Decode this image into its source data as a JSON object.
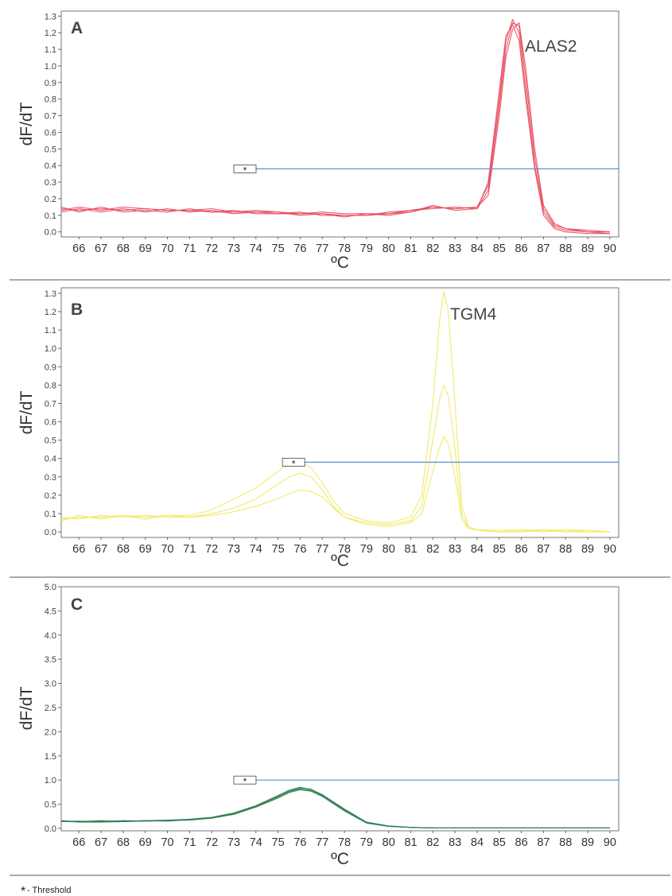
{
  "chart_data": [
    {
      "type": "line",
      "panel_label": "A",
      "annotation": "ALAS2",
      "ylabel": "dF/dT",
      "xlabel": "ºC",
      "xlim": [
        65.2,
        90.4
      ],
      "ylim": [
        -0.03,
        1.33
      ],
      "x_ticks": [
        "66",
        "67",
        "68",
        "69",
        "70",
        "71",
        "72",
        "73",
        "74",
        "75",
        "76",
        "77",
        "78",
        "79",
        "80",
        "81",
        "82",
        "83",
        "84",
        "85",
        "86",
        "87",
        "88",
        "89",
        "90"
      ],
      "y_ticks": [
        "0.0",
        "0.1",
        "0.2",
        "0.3",
        "0.4",
        "0.5",
        "0.6",
        "0.7",
        "0.8",
        "0.9",
        "1.0",
        "1.1",
        "1.2",
        "1.3"
      ],
      "threshold": {
        "value": 0.38,
        "x_start": 73.0,
        "marker": "*"
      },
      "line_color": "#e8475a",
      "x": [
        65.2,
        66,
        67,
        68,
        69,
        70,
        71,
        72,
        73,
        74,
        75,
        76,
        77,
        78,
        79,
        80,
        81,
        82,
        83,
        84,
        84.5,
        85,
        85.3,
        85.6,
        85.9,
        86.2,
        86.6,
        87,
        87.5,
        88,
        89,
        90
      ],
      "series": [
        {
          "values": [
            0.14,
            0.13,
            0.14,
            0.13,
            0.14,
            0.13,
            0.13,
            0.12,
            0.12,
            0.12,
            0.11,
            0.11,
            0.11,
            0.1,
            0.1,
            0.11,
            0.13,
            0.15,
            0.14,
            0.15,
            0.28,
            0.8,
            1.15,
            1.28,
            1.2,
            0.85,
            0.4,
            0.12,
            0.03,
            0.01,
            0.0,
            -0.01
          ]
        },
        {
          "values": [
            0.12,
            0.14,
            0.12,
            0.14,
            0.12,
            0.14,
            0.12,
            0.13,
            0.11,
            0.12,
            0.12,
            0.1,
            0.11,
            0.09,
            0.11,
            0.1,
            0.12,
            0.16,
            0.13,
            0.14,
            0.25,
            0.75,
            1.1,
            1.26,
            1.24,
            0.92,
            0.45,
            0.14,
            0.04,
            0.02,
            0.0,
            0.0
          ]
        },
        {
          "values": [
            0.15,
            0.12,
            0.15,
            0.12,
            0.13,
            0.12,
            0.14,
            0.12,
            0.13,
            0.11,
            0.11,
            0.12,
            0.1,
            0.1,
            0.1,
            0.12,
            0.13,
            0.14,
            0.15,
            0.14,
            0.3,
            0.85,
            1.18,
            1.25,
            1.15,
            0.8,
            0.38,
            0.1,
            0.02,
            0.0,
            -0.01,
            -0.01
          ]
        },
        {
          "values": [
            0.13,
            0.15,
            0.13,
            0.15,
            0.14,
            0.13,
            0.13,
            0.14,
            0.12,
            0.13,
            0.12,
            0.11,
            0.12,
            0.11,
            0.11,
            0.11,
            0.12,
            0.15,
            0.14,
            0.15,
            0.22,
            0.7,
            1.05,
            1.22,
            1.26,
            0.98,
            0.5,
            0.16,
            0.05,
            0.02,
            0.01,
            0.0
          ]
        }
      ]
    },
    {
      "type": "line",
      "panel_label": "B",
      "annotation": "TGM4",
      "ylabel": "dF/dT",
      "xlabel": "ºC",
      "xlim": [
        65.2,
        90.4
      ],
      "ylim": [
        -0.03,
        1.33
      ],
      "x_ticks": [
        "66",
        "67",
        "68",
        "69",
        "70",
        "71",
        "72",
        "73",
        "74",
        "75",
        "76",
        "77",
        "78",
        "79",
        "80",
        "81",
        "82",
        "83",
        "84",
        "85",
        "86",
        "87",
        "88",
        "89",
        "90"
      ],
      "y_ticks": [
        "0.0",
        "0.1",
        "0.2",
        "0.3",
        "0.4",
        "0.5",
        "0.6",
        "0.7",
        "0.8",
        "0.9",
        "1.0",
        "1.1",
        "1.2",
        "1.3"
      ],
      "threshold": {
        "value": 0.38,
        "x_start": 75.2,
        "marker": "*"
      },
      "line_color": "#f0e858",
      "x": [
        65.2,
        66,
        67,
        68,
        69,
        70,
        71,
        72,
        73,
        74,
        75,
        75.5,
        76,
        76.5,
        77,
        77.5,
        78,
        79,
        80,
        81,
        81.5,
        82,
        82.3,
        82.5,
        82.7,
        83,
        83.3,
        83.6,
        84,
        85,
        86,
        87,
        88,
        89,
        90
      ],
      "series": [
        {
          "values": [
            0.07,
            0.08,
            0.08,
            0.09,
            0.08,
            0.09,
            0.09,
            0.12,
            0.18,
            0.24,
            0.33,
            0.37,
            0.38,
            0.35,
            0.27,
            0.17,
            0.1,
            0.06,
            0.05,
            0.08,
            0.2,
            0.7,
            1.15,
            1.31,
            1.2,
            0.7,
            0.15,
            0.03,
            0.01,
            0.01,
            0.01,
            0.01,
            0.01,
            0.01,
            0.0
          ]
        },
        {
          "values": [
            0.08,
            0.07,
            0.09,
            0.08,
            0.09,
            0.08,
            0.08,
            0.1,
            0.13,
            0.18,
            0.26,
            0.3,
            0.32,
            0.3,
            0.23,
            0.14,
            0.08,
            0.05,
            0.04,
            0.06,
            0.14,
            0.5,
            0.72,
            0.8,
            0.74,
            0.45,
            0.1,
            0.02,
            0.01,
            0.0,
            0.01,
            0.0,
            0.01,
            0.0,
            0.0
          ]
        },
        {
          "values": [
            0.06,
            0.09,
            0.07,
            0.09,
            0.07,
            0.09,
            0.08,
            0.09,
            0.11,
            0.14,
            0.18,
            0.21,
            0.23,
            0.22,
            0.19,
            0.13,
            0.08,
            0.04,
            0.03,
            0.05,
            0.1,
            0.33,
            0.46,
            0.52,
            0.48,
            0.3,
            0.07,
            0.02,
            0.01,
            0.0,
            0.0,
            0.01,
            0.0,
            0.0,
            0.0
          ]
        }
      ]
    },
    {
      "type": "line",
      "panel_label": "C",
      "ylabel": "dF/dT",
      "xlabel": "ºC",
      "xlim": [
        65.2,
        90.4
      ],
      "ylim": [
        -0.05,
        5.0
      ],
      "x_ticks": [
        "66",
        "67",
        "68",
        "69",
        "70",
        "71",
        "72",
        "73",
        "74",
        "75",
        "76",
        "77",
        "78",
        "79",
        "80",
        "81",
        "82",
        "83",
        "84",
        "85",
        "86",
        "87",
        "88",
        "89",
        "90"
      ],
      "y_ticks": [
        "0.0",
        "0.5",
        "1.0",
        "1.5",
        "2.0",
        "2.5",
        "3.0",
        "3.5",
        "4.0",
        "4.5",
        "5.0"
      ],
      "threshold": {
        "value": 1.0,
        "x_start": 73.0,
        "marker": "*"
      },
      "line_color": "#2e7d4f",
      "x": [
        65.2,
        66,
        67,
        68,
        69,
        70,
        71,
        72,
        73,
        74,
        75,
        75.5,
        76,
        76.5,
        77,
        78,
        79,
        80,
        81,
        82,
        83,
        84,
        85,
        86,
        87,
        88,
        89,
        90
      ],
      "series": [
        {
          "values": [
            0.15,
            0.13,
            0.13,
            0.14,
            0.15,
            0.16,
            0.18,
            0.22,
            0.3,
            0.45,
            0.65,
            0.76,
            0.82,
            0.78,
            0.68,
            0.38,
            0.12,
            0.04,
            0.02,
            0.01,
            0.01,
            0.01,
            0.01,
            0.01,
            0.01,
            0.01,
            0.01,
            0.01
          ]
        },
        {
          "values": [
            0.16,
            0.14,
            0.15,
            0.15,
            0.16,
            0.17,
            0.19,
            0.23,
            0.32,
            0.47,
            0.68,
            0.79,
            0.85,
            0.8,
            0.7,
            0.4,
            0.13,
            0.05,
            0.02,
            0.01,
            0.01,
            0.01,
            0.01,
            0.01,
            0.01,
            0.01,
            0.01,
            0.01
          ]
        },
        {
          "values": [
            0.14,
            0.15,
            0.14,
            0.16,
            0.15,
            0.16,
            0.17,
            0.21,
            0.29,
            0.44,
            0.63,
            0.74,
            0.8,
            0.77,
            0.66,
            0.36,
            0.11,
            0.04,
            0.02,
            0.01,
            0.01,
            0.01,
            0.01,
            0.01,
            0.01,
            0.01,
            0.01,
            0.01
          ]
        },
        {
          "values": [
            0.15,
            0.14,
            0.16,
            0.14,
            0.16,
            0.15,
            0.18,
            0.22,
            0.31,
            0.46,
            0.66,
            0.77,
            0.84,
            0.81,
            0.69,
            0.39,
            0.12,
            0.05,
            0.02,
            0.01,
            0.01,
            0.01,
            0.01,
            0.01,
            0.01,
            0.01,
            0.01,
            0.01
          ]
        }
      ]
    }
  ],
  "footnote": {
    "symbol": "*",
    "text": " - Threshold"
  }
}
